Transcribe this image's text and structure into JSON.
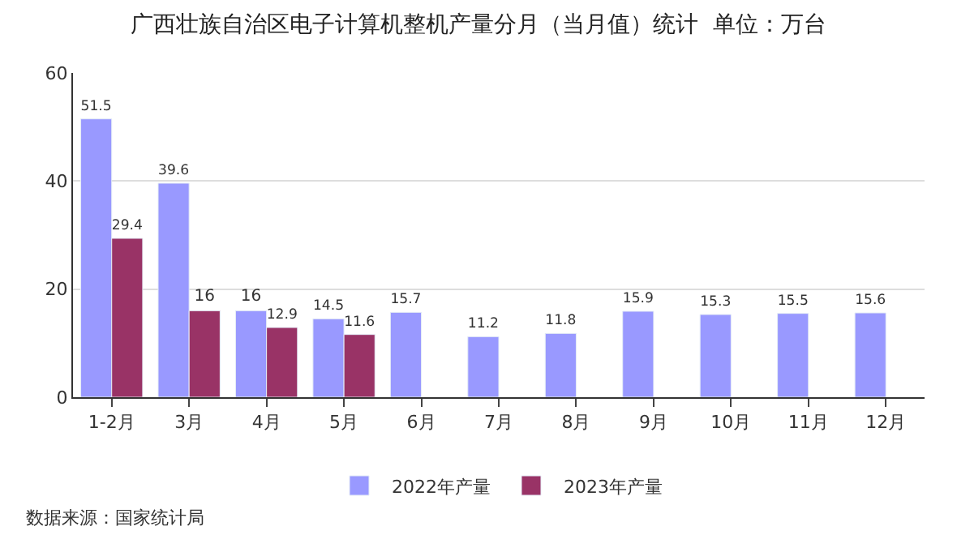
{
  "chart_data": {
    "type": "bar",
    "title": "广西壮族自治区电子计算机整机产量分月（当月值）统计  单位：万台",
    "categories": [
      "1-2月",
      "3月",
      "4月",
      "5月",
      "6月",
      "7月",
      "8月",
      "9月",
      "10月",
      "11月",
      "12月"
    ],
    "series": [
      {
        "name": "2022年产量",
        "color": "#9999ff",
        "values": [
          51.5,
          39.6,
          16,
          14.5,
          15.7,
          11.2,
          11.8,
          15.9,
          15.3,
          15.5,
          15.6
        ]
      },
      {
        "name": "2023年产量",
        "color": "#993366",
        "values": [
          29.4,
          16,
          12.9,
          11.6,
          null,
          null,
          null,
          null,
          null,
          null,
          null
        ]
      }
    ],
    "ylim": [
      0,
      60
    ],
    "yticks": [
      0,
      20,
      40,
      60
    ],
    "grid": "y",
    "legend": "bottom",
    "data_labels": true,
    "annotations": [
      "数据来源：国家统计局"
    ]
  }
}
